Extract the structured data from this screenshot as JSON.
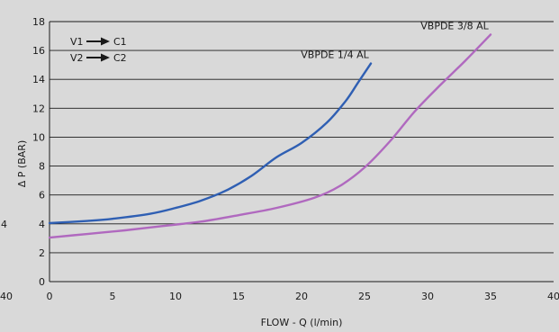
{
  "chart_data": {
    "type": "line",
    "title": "",
    "xlabel": "FLOW - Q (l/min)",
    "ylabel": "Δ P (BAR)",
    "xlim": [
      0,
      40
    ],
    "ylim": [
      0,
      18
    ],
    "x_ticks": [
      "0",
      "5",
      "10",
      "15",
      "20",
      "25",
      "30",
      "35",
      "40"
    ],
    "y_ticks": [
      "0",
      "2",
      "4",
      "6",
      "8",
      "10",
      "12",
      "14",
      "16",
      "18"
    ],
    "grid": "horizontal",
    "left_edge_partial_labels": [
      "4",
      "40"
    ],
    "annotations": [
      {
        "from": "V1",
        "to": "C1"
      },
      {
        "from": "V2",
        "to": "C2"
      }
    ],
    "series": [
      {
        "name": "VBPDE 1/4 AL",
        "color": "#2f5fb3",
        "points": [
          [
            0,
            4.05
          ],
          [
            3,
            4.2
          ],
          [
            5,
            4.35
          ],
          [
            8,
            4.7
          ],
          [
            10,
            5.1
          ],
          [
            12,
            5.6
          ],
          [
            14,
            6.3
          ],
          [
            16,
            7.3
          ],
          [
            18,
            8.6
          ],
          [
            20,
            9.6
          ],
          [
            22,
            11.0
          ],
          [
            23.5,
            12.5
          ],
          [
            24.5,
            13.8
          ],
          [
            25.5,
            15.1
          ]
        ]
      },
      {
        "name": "VBPDE 3/8 AL",
        "color": "#b069bf",
        "points": [
          [
            0,
            3.05
          ],
          [
            3,
            3.3
          ],
          [
            6,
            3.55
          ],
          [
            9,
            3.85
          ],
          [
            12,
            4.15
          ],
          [
            15,
            4.6
          ],
          [
            18,
            5.1
          ],
          [
            21,
            5.8
          ],
          [
            23,
            6.6
          ],
          [
            25,
            7.9
          ],
          [
            27,
            9.7
          ],
          [
            29,
            11.8
          ],
          [
            31,
            13.6
          ],
          [
            33,
            15.3
          ],
          [
            35,
            17.1
          ]
        ]
      }
    ]
  }
}
